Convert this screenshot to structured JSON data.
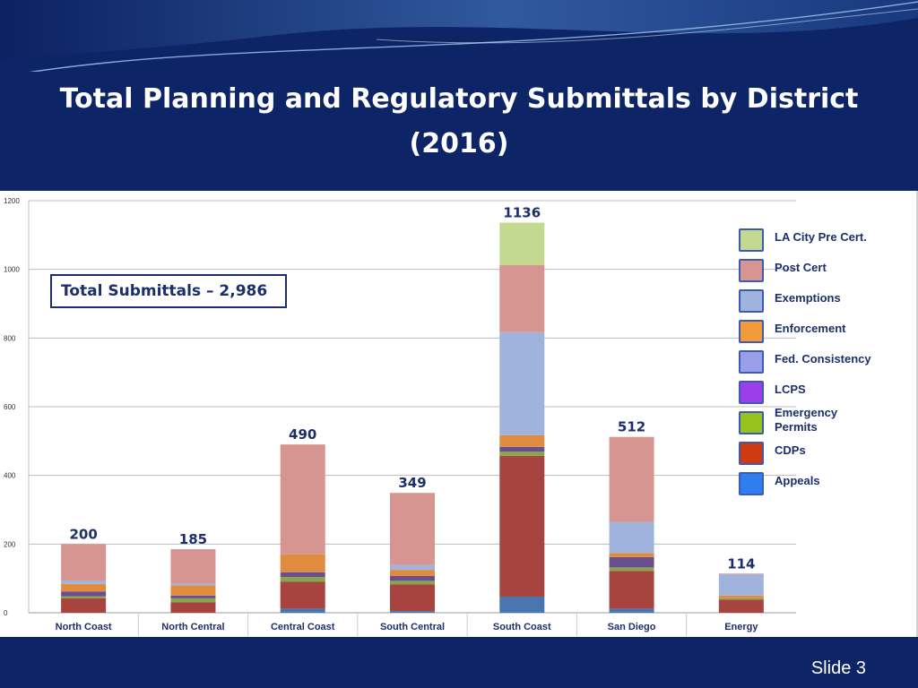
{
  "slide": {
    "title_line1": "Total  Planning and Regulatory Submittals by District",
    "title_line2": "(2016)",
    "total_box": "Total Submittals – 2,986",
    "slide_number": "Slide 3",
    "background_color": "#0d2466"
  },
  "chart_data": {
    "type": "bar",
    "stacked": true,
    "categories": [
      "North Coast",
      "North Central",
      "Central Coast",
      "South Central",
      "South  Coast",
      "San Diego",
      "Energy"
    ],
    "totals": [
      200,
      185,
      490,
      349,
      1136,
      512,
      114
    ],
    "ylim": [
      0,
      1200
    ],
    "yticks": [
      0,
      200,
      400,
      600,
      800,
      1000,
      1200
    ],
    "grid": true,
    "legend_position": "right",
    "series": [
      {
        "name": "Appeals",
        "color": "#4a76b0",
        "values": [
          0,
          0,
          12,
          5,
          47,
          12,
          0
        ]
      },
      {
        "name": "CDPs",
        "color": "#a84440",
        "values": [
          42,
          30,
          78,
          78,
          410,
          110,
          38
        ]
      },
      {
        "name": "Emergency Permits",
        "color": "#88a44c",
        "values": [
          6,
          12,
          14,
          10,
          12,
          10,
          4
        ]
      },
      {
        "name": "LCPS",
        "color": "#6a4f8e",
        "values": [
          14,
          8,
          14,
          14,
          14,
          30,
          0
        ]
      },
      {
        "name": "Fed. Consistency",
        "color": "#7f98c8",
        "values": [
          0,
          0,
          0,
          0,
          0,
          0,
          0
        ]
      },
      {
        "name": "Enforcement",
        "color": "#e08c3e",
        "values": [
          22,
          30,
          52,
          18,
          34,
          12,
          8
        ]
      },
      {
        "name": "Exemptions",
        "color": "#9fb3dc",
        "values": [
          10,
          5,
          0,
          14,
          300,
          90,
          62
        ]
      },
      {
        "name": "Post Cert",
        "color": "#d69590",
        "values": [
          106,
          100,
          320,
          210,
          196,
          248,
          2
        ]
      },
      {
        "name": "LA City  Pre Cert.",
        "color": "#c2d98f",
        "values": [
          0,
          0,
          0,
          0,
          123,
          0,
          0
        ]
      }
    ],
    "legend_order": [
      "LA City  Pre Cert.",
      "Post Cert",
      "Exemptions",
      "Enforcement",
      "Fed. Consistency",
      "LCPS",
      "Emergency Permits",
      "CDPs",
      "Appeals"
    ],
    "legend_swatch_colors": [
      "#c2d98f",
      "#d69590",
      "#9fb3dc",
      "#f39a3a",
      "#9b9ee8",
      "#9b3fea",
      "#97c11d",
      "#cf3a10",
      "#2f7ef0"
    ],
    "legend_labels": [
      {
        "line1": "LA City  Pre Cert.",
        "line2": ""
      },
      {
        "line1": "Post Cert",
        "line2": ""
      },
      {
        "line1": "Exemptions",
        "line2": ""
      },
      {
        "line1": "Enforcement",
        "line2": ""
      },
      {
        "line1": "Fed. Consistency",
        "line2": ""
      },
      {
        "line1": "LCPS",
        "line2": ""
      },
      {
        "line1": "Emergency",
        "line2": "Permits"
      },
      {
        "line1": "CDPs",
        "line2": ""
      },
      {
        "line1": "Appeals",
        "line2": ""
      }
    ]
  }
}
